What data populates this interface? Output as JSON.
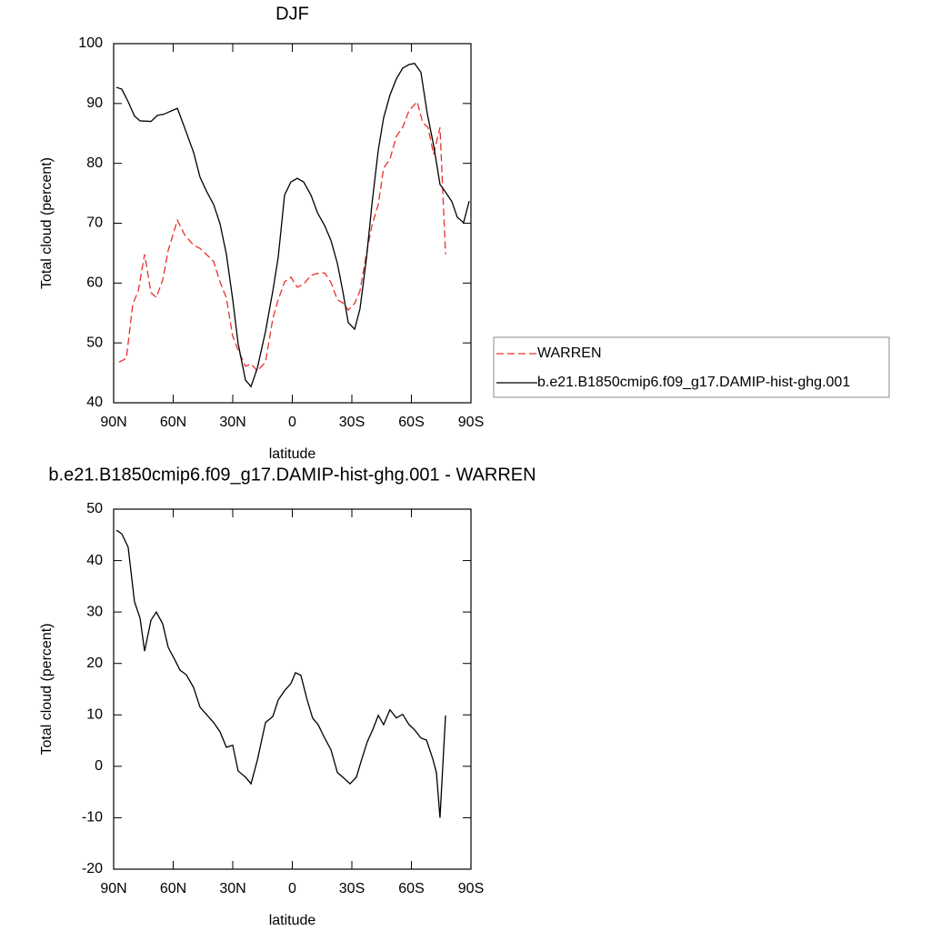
{
  "chart_data": [
    {
      "type": "line",
      "title": "DJF",
      "xlabel": "latitude",
      "ylabel": "Total cloud (percent)",
      "xlim": [
        90,
        -90
      ],
      "xticks": [
        {
          "value": 90,
          "label": "90N"
        },
        {
          "value": 60,
          "label": "60N"
        },
        {
          "value": 30,
          "label": "30N"
        },
        0,
        {
          "value": -30,
          "label": "30S"
        },
        {
          "value": -60,
          "label": "60S"
        },
        {
          "value": -90,
          "label": "90S"
        }
      ],
      "ylim": [
        40,
        100
      ],
      "yticks": [
        40,
        50,
        60,
        70,
        80,
        90,
        100
      ],
      "legend": "right",
      "series": [
        {
          "name": "WARREN",
          "color": "#e8302b",
          "linestyle": "dashed",
          "x": [
            87.3,
            83.6,
            80.4,
            77.6,
            74.4,
            71.2,
            68.5,
            65.3,
            62.5,
            57.9,
            54.3,
            49.7,
            46.5,
            43.3,
            39.6,
            36.4,
            33.2,
            30.0,
            27.3,
            23.6,
            20.8,
            17.6,
            13.5,
            9.8,
            7.1,
            3.9,
            0.7,
            -2.5,
            -5.7,
            -9.4,
            -12.6,
            -16.3,
            -19.5,
            -22.7,
            -25.4,
            -28.2,
            -31.4,
            -34.1,
            -37.3,
            -40.1,
            -43.3,
            -46.0,
            -49.2,
            -52.4,
            -55.6,
            -58.8,
            -62.9,
            -65.7,
            -68.4,
            -71.2,
            -74.4,
            -77.2
          ],
          "values": [
            46.8,
            47.4,
            56.4,
            58.7,
            64.8,
            58.4,
            57.6,
            60.5,
            65.5,
            70.5,
            68.1,
            66.3,
            65.8,
            64.8,
            63.6,
            60.2,
            57.5,
            51.1,
            48.8,
            46.1,
            46.5,
            45.3,
            46.8,
            54.1,
            57.2,
            60.2,
            61.0,
            59.3,
            59.8,
            61.3,
            61.6,
            61.7,
            60.1,
            57.2,
            56.7,
            55.5,
            56.6,
            58.7,
            64.8,
            69.6,
            73.1,
            79.2,
            80.7,
            84.5,
            86.0,
            88.8,
            90.3,
            86.8,
            86.0,
            81.5,
            86.0,
            64.8
          ]
        },
        {
          "name": "b.e21.B1850cmip6.f09_g17.DAMIP-hist-ghg.001",
          "color": "#000000",
          "linestyle": "solid",
          "x": [
            88.6,
            85.9,
            82.7,
            79.5,
            76.7,
            71.2,
            68.0,
            64.8,
            57.9,
            54.3,
            49.7,
            46.5,
            43.3,
            39.6,
            36.4,
            33.2,
            30.0,
            27.3,
            23.6,
            20.8,
            17.6,
            13.5,
            9.8,
            7.1,
            3.9,
            0.7,
            -2.5,
            -5.7,
            -9.4,
            -12.6,
            -16.3,
            -19.5,
            -22.7,
            -25.4,
            -28.2,
            -31.4,
            -34.1,
            -37.3,
            -40.1,
            -43.3,
            -46.0,
            -49.2,
            -52.4,
            -55.6,
            -58.8,
            -61.6,
            -64.8,
            -68.0,
            -71.2,
            -74.4,
            -77.6,
            -80.4,
            -83.1,
            -86.3,
            -89.1
          ],
          "values": [
            92.7,
            92.4,
            90.3,
            87.9,
            87.1,
            87.0,
            88.0,
            88.2,
            89.2,
            86.0,
            81.8,
            77.7,
            75.4,
            73.1,
            69.9,
            64.8,
            57.2,
            49.9,
            43.8,
            42.7,
            45.8,
            51.9,
            58.7,
            64.3,
            74.7,
            76.9,
            77.5,
            76.9,
            74.7,
            71.8,
            69.6,
            67.1,
            63.3,
            58.7,
            53.4,
            52.3,
            55.7,
            64.0,
            73.1,
            82.2,
            87.6,
            91.4,
            94.1,
            95.9,
            96.5,
            96.7,
            95.2,
            88.3,
            83.0,
            76.5,
            75.0,
            73.6,
            71.0,
            70.1,
            73.7
          ]
        }
      ]
    },
    {
      "type": "line",
      "title": "b.e21.B1850cmip6.f09_g17.DAMIP-hist-ghg.001 - WARREN",
      "xlabel": "latitude",
      "ylabel": "Total cloud (percent)",
      "xlim": [
        90,
        -90
      ],
      "xticks": [
        {
          "value": 90,
          "label": "90N"
        },
        {
          "value": 60,
          "label": "60N"
        },
        {
          "value": 30,
          "label": "30N"
        },
        0,
        {
          "value": -30,
          "label": "30S"
        },
        {
          "value": -60,
          "label": "60S"
        },
        {
          "value": -90,
          "label": "90S"
        }
      ],
      "ylim": [
        -20,
        50
      ],
      "yticks": [
        -20,
        -10,
        0,
        10,
        20,
        30,
        40,
        50
      ],
      "series": [
        {
          "color": "#000000",
          "linestyle": "solid",
          "x": [
            88.6,
            85.9,
            82.7,
            79.5,
            76.7,
            74.4,
            71.2,
            68.5,
            65.3,
            62.5,
            59.3,
            56.6,
            53.4,
            49.7,
            46.5,
            43.3,
            39.6,
            36.4,
            33.2,
            30.0,
            27.3,
            23.6,
            20.8,
            17.6,
            13.5,
            9.8,
            7.1,
            3.9,
            0.7,
            -1.6,
            -4.3,
            -7.5,
            -10.2,
            -13.0,
            -16.3,
            -19.5,
            -22.7,
            -25.4,
            -29.1,
            -32.3,
            -35.0,
            -37.8,
            -40.5,
            -43.3,
            -46.0,
            -49.2,
            -52.4,
            -55.6,
            -58.8,
            -61.6,
            -64.8,
            -67.6,
            -70.8,
            -72.6,
            -74.4,
            -77.2
          ],
          "values": [
            45.9,
            45.2,
            42.6,
            32.0,
            28.8,
            22.4,
            28.4,
            30.0,
            27.7,
            23.1,
            20.8,
            18.7,
            17.8,
            15.3,
            11.5,
            10.1,
            8.5,
            6.7,
            3.7,
            4.1,
            -0.9,
            -2.1,
            -3.4,
            1.2,
            8.5,
            9.7,
            12.9,
            14.7,
            16.1,
            18.2,
            17.7,
            12.9,
            9.4,
            8.1,
            5.5,
            3.2,
            -1.2,
            -2.1,
            -3.4,
            -2.1,
            1.4,
            4.8,
            7.1,
            9.9,
            8.1,
            11.0,
            9.4,
            10.1,
            8.1,
            7.1,
            5.5,
            5.1,
            1.4,
            -1.2,
            -10.0,
            9.9
          ]
        }
      ]
    }
  ]
}
